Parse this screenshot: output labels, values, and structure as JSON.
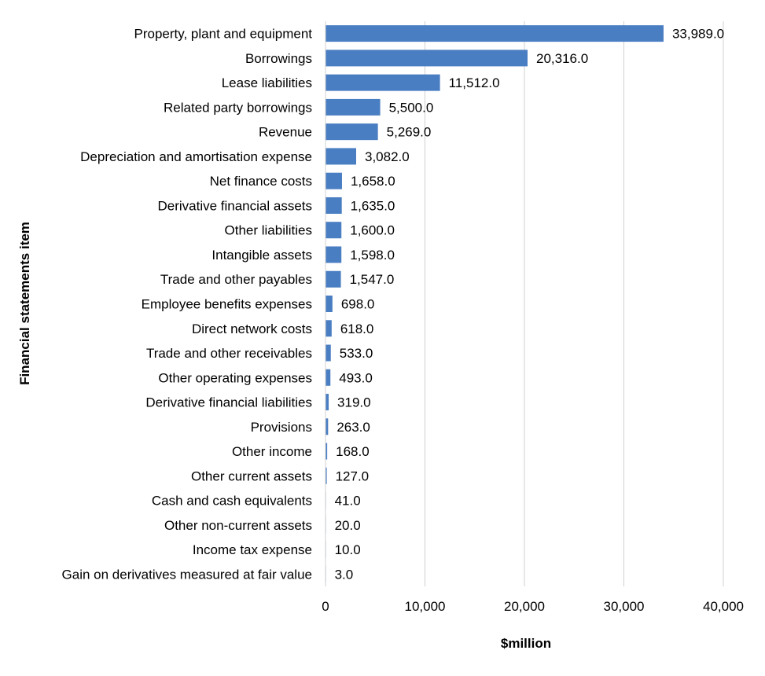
{
  "chart_data": {
    "type": "bar",
    "orientation": "horizontal",
    "title": "",
    "xlabel": "$million",
    "ylabel": "Financial statements item",
    "xlim": [
      0,
      40000
    ],
    "x_ticks": [
      0,
      10000,
      20000,
      30000,
      40000
    ],
    "x_tick_labels": [
      "0",
      "10,000",
      "20,000",
      "30,000",
      "40,000"
    ],
    "grid": "vertical",
    "legend": "none",
    "bar_color": "#4a7ec2",
    "grid_color": "#d0d0d0",
    "categories": [
      "Property, plant and equipment",
      "Borrowings",
      "Lease liabilities",
      "Related party borrowings",
      "Revenue",
      "Depreciation and amortisation expense",
      "Net finance costs",
      "Derivative financial assets",
      "Other liabilities",
      "Intangible assets",
      "Trade and other payables",
      "Employee benefits expenses",
      "Direct network costs",
      "Trade and other receivables",
      "Other operating expenses",
      "Derivative financial liabilities",
      "Provisions",
      "Other income",
      "Other current assets",
      "Cash and cash equivalents",
      "Other non-current assets",
      "Income tax expense",
      "Gain on derivatives measured at fair value"
    ],
    "values": [
      33989,
      20316,
      11512,
      5500,
      5269,
      3082,
      1658,
      1635,
      1600,
      1598,
      1547,
      698,
      618,
      533,
      493,
      319,
      263,
      168,
      127,
      41,
      20,
      10,
      3
    ],
    "value_labels": [
      "33,989.0",
      "20,316.0",
      "11,512.0",
      "5,500.0",
      "5,269.0",
      "3,082.0",
      "1,658.0",
      "1,635.0",
      "1,600.0",
      "1,598.0",
      "1,547.0",
      "698.0",
      "618.0",
      "533.0",
      "493.0",
      "319.0",
      "263.0",
      "168.0",
      "127.0",
      "41.0",
      "20.0",
      "10.0",
      "3.0"
    ]
  }
}
